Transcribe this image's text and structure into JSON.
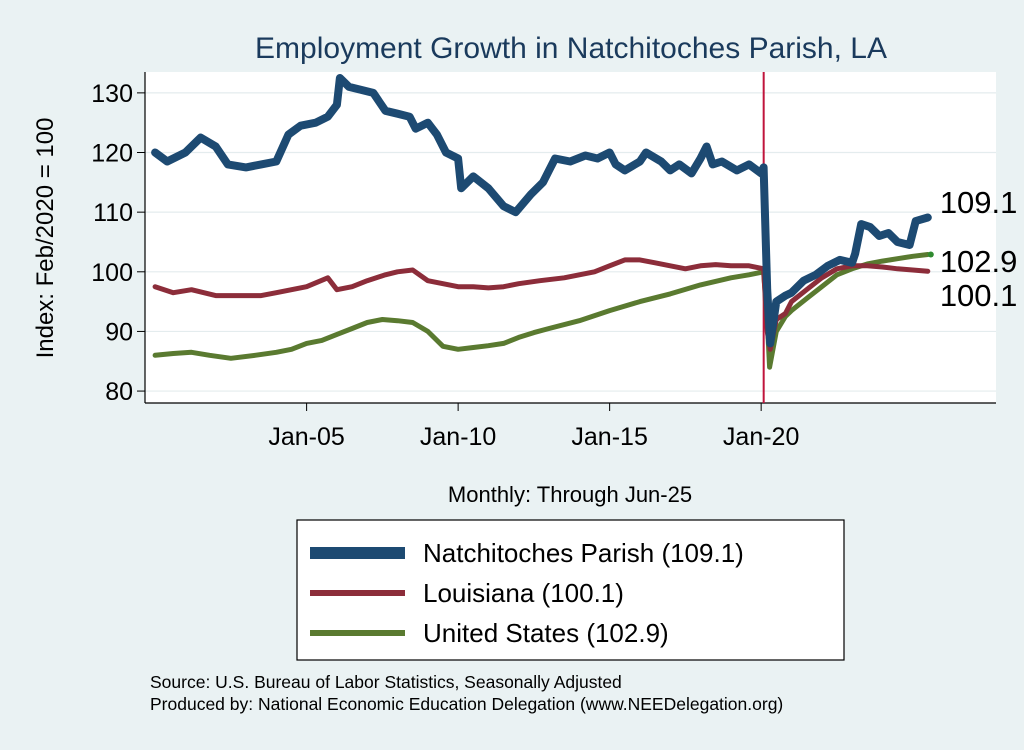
{
  "chart_data": {
    "type": "line",
    "title": "Employment Growth in Natchitoches Parish, LA",
    "xlabel": "Monthly: Through Jun-25",
    "ylabel": "Index: Feb/2020 = 100",
    "x_range": [
      "2000-01",
      "2025-06"
    ],
    "xlim": [
      "1999-09",
      "2027-10"
    ],
    "ylim": [
      78,
      133.5
    ],
    "x_ticks": [
      "Jan-05",
      "Jan-10",
      "Jan-15",
      "Jan-20"
    ],
    "y_ticks": [
      80,
      90,
      100,
      110,
      120,
      130
    ],
    "grid": true,
    "reference_line": {
      "x": "Feb-20",
      "color": "#c0143c"
    },
    "legend_position": "bottom",
    "end_labels": [
      "109.1",
      "102.9",
      "100.1"
    ],
    "series": [
      {
        "name": "Natchitoches Parish  (109.1)",
        "color": "#1d4a72",
        "points": [
          [
            2000.0,
            120
          ],
          [
            2000.4,
            118.5
          ],
          [
            2001.0,
            120
          ],
          [
            2001.5,
            122.5
          ],
          [
            2002.0,
            121
          ],
          [
            2002.4,
            118
          ],
          [
            2003.0,
            117.5
          ],
          [
            2003.5,
            118
          ],
          [
            2004.0,
            118.5
          ],
          [
            2004.4,
            123
          ],
          [
            2004.8,
            124.5
          ],
          [
            2005.3,
            125
          ],
          [
            2005.7,
            126
          ],
          [
            2006.0,
            128
          ],
          [
            2006.1,
            132.5
          ],
          [
            2006.4,
            131
          ],
          [
            2006.8,
            130.5
          ],
          [
            2007.2,
            130
          ],
          [
            2007.4,
            128.5
          ],
          [
            2007.6,
            127
          ],
          [
            2008.0,
            126.5
          ],
          [
            2008.4,
            126
          ],
          [
            2008.6,
            124
          ],
          [
            2009.0,
            125
          ],
          [
            2009.3,
            123
          ],
          [
            2009.6,
            120
          ],
          [
            2010.0,
            119
          ],
          [
            2010.1,
            114
          ],
          [
            2010.5,
            116
          ],
          [
            2011.0,
            114
          ],
          [
            2011.5,
            111
          ],
          [
            2011.9,
            110
          ],
          [
            2012.4,
            113
          ],
          [
            2012.8,
            115
          ],
          [
            2013.0,
            117
          ],
          [
            2013.2,
            119
          ],
          [
            2013.7,
            118.5
          ],
          [
            2014.2,
            119.5
          ],
          [
            2014.6,
            119
          ],
          [
            2015.0,
            120
          ],
          [
            2015.2,
            118
          ],
          [
            2015.5,
            117
          ],
          [
            2016.0,
            118.5
          ],
          [
            2016.2,
            120
          ],
          [
            2016.7,
            118.5
          ],
          [
            2017.0,
            117
          ],
          [
            2017.3,
            118
          ],
          [
            2017.7,
            116.5
          ],
          [
            2018.0,
            119
          ],
          [
            2018.2,
            121
          ],
          [
            2018.4,
            118
          ],
          [
            2018.7,
            118.5
          ],
          [
            2019.2,
            117
          ],
          [
            2019.6,
            118
          ],
          [
            2020.0,
            116.5
          ],
          [
            2020.08,
            117.5
          ],
          [
            2020.2,
            97
          ],
          [
            2020.3,
            88
          ],
          [
            2020.5,
            95
          ],
          [
            2020.8,
            96
          ],
          [
            2021.0,
            96.5
          ],
          [
            2021.4,
            98.5
          ],
          [
            2021.8,
            99.5
          ],
          [
            2022.2,
            101
          ],
          [
            2022.6,
            102
          ],
          [
            2023.0,
            101.5
          ],
          [
            2023.1,
            103
          ],
          [
            2023.3,
            108
          ],
          [
            2023.6,
            107.5
          ],
          [
            2023.9,
            106
          ],
          [
            2024.2,
            106.5
          ],
          [
            2024.5,
            105
          ],
          [
            2024.9,
            104.5
          ],
          [
            2025.1,
            108.5
          ],
          [
            2025.5,
            109.1
          ]
        ]
      },
      {
        "name": "Louisiana (100.1)",
        "color": "#8c2d3a",
        "points": [
          [
            2000.0,
            97.5
          ],
          [
            2000.6,
            96.5
          ],
          [
            2001.2,
            97
          ],
          [
            2002.0,
            96
          ],
          [
            2003.0,
            96
          ],
          [
            2003.5,
            96
          ],
          [
            2004.0,
            96.5
          ],
          [
            2005.0,
            97.5
          ],
          [
            2005.7,
            99
          ],
          [
            2006.0,
            97
          ],
          [
            2006.5,
            97.5
          ],
          [
            2007.0,
            98.5
          ],
          [
            2007.6,
            99.5
          ],
          [
            2008.0,
            100
          ],
          [
            2008.5,
            100.3
          ],
          [
            2009.0,
            98.5
          ],
          [
            2009.5,
            98
          ],
          [
            2010.0,
            97.5
          ],
          [
            2010.5,
            97.5
          ],
          [
            2011.0,
            97.3
          ],
          [
            2011.5,
            97.5
          ],
          [
            2012.0,
            98
          ],
          [
            2012.7,
            98.5
          ],
          [
            2013.5,
            99
          ],
          [
            2014.5,
            100
          ],
          [
            2015.0,
            101
          ],
          [
            2015.5,
            102
          ],
          [
            2016.0,
            102
          ],
          [
            2016.5,
            101.5
          ],
          [
            2017.0,
            101
          ],
          [
            2017.5,
            100.5
          ],
          [
            2018.0,
            101
          ],
          [
            2018.5,
            101.2
          ],
          [
            2019.0,
            101
          ],
          [
            2019.6,
            101
          ],
          [
            2020.08,
            100.5
          ],
          [
            2020.2,
            90
          ],
          [
            2020.3,
            87
          ],
          [
            2020.5,
            92
          ],
          [
            2020.8,
            93
          ],
          [
            2021.0,
            95
          ],
          [
            2021.5,
            97
          ],
          [
            2022.0,
            99
          ],
          [
            2022.5,
            100.5
          ],
          [
            2023.0,
            101
          ],
          [
            2023.5,
            101
          ],
          [
            2024.0,
            100.8
          ],
          [
            2024.5,
            100.5
          ],
          [
            2025.0,
            100.3
          ],
          [
            2025.5,
            100.1
          ]
        ]
      },
      {
        "name": "United States (102.9)",
        "color": "#5a7a30",
        "points": [
          [
            2000.0,
            86
          ],
          [
            2000.6,
            86.3
          ],
          [
            2001.2,
            86.5
          ],
          [
            2001.8,
            86
          ],
          [
            2002.5,
            85.5
          ],
          [
            2003.3,
            86
          ],
          [
            2004.0,
            86.5
          ],
          [
            2004.5,
            87
          ],
          [
            2005.0,
            88
          ],
          [
            2005.5,
            88.5
          ],
          [
            2006.0,
            89.5
          ],
          [
            2006.5,
            90.5
          ],
          [
            2007.0,
            91.5
          ],
          [
            2007.5,
            92
          ],
          [
            2008.0,
            91.8
          ],
          [
            2008.5,
            91.5
          ],
          [
            2009.0,
            90
          ],
          [
            2009.5,
            87.5
          ],
          [
            2010.0,
            87
          ],
          [
            2010.5,
            87.3
          ],
          [
            2011.0,
            87.6
          ],
          [
            2011.5,
            88
          ],
          [
            2012.0,
            89
          ],
          [
            2012.5,
            89.8
          ],
          [
            2013.0,
            90.5
          ],
          [
            2014.0,
            91.8
          ],
          [
            2015.0,
            93.5
          ],
          [
            2016.0,
            95
          ],
          [
            2017.0,
            96.3
          ],
          [
            2018.0,
            97.8
          ],
          [
            2019.0,
            99
          ],
          [
            2019.6,
            99.5
          ],
          [
            2020.08,
            100
          ],
          [
            2020.2,
            92
          ],
          [
            2020.28,
            84
          ],
          [
            2020.5,
            90
          ],
          [
            2020.8,
            92.5
          ],
          [
            2021.0,
            93.5
          ],
          [
            2021.5,
            95.5
          ],
          [
            2022.0,
            97.5
          ],
          [
            2022.5,
            99.5
          ],
          [
            2023.0,
            100.5
          ],
          [
            2023.5,
            101.3
          ],
          [
            2024.0,
            101.8
          ],
          [
            2024.5,
            102.2
          ],
          [
            2025.0,
            102.6
          ],
          [
            2025.5,
            102.9
          ]
        ]
      }
    ]
  },
  "footer": {
    "source": "Source: U.S. Bureau of Labor Statistics, Seasonally Adjusted",
    "produced_by": "Produced by: National Economic Education Delegation (www.NEEDelegation.org)"
  }
}
